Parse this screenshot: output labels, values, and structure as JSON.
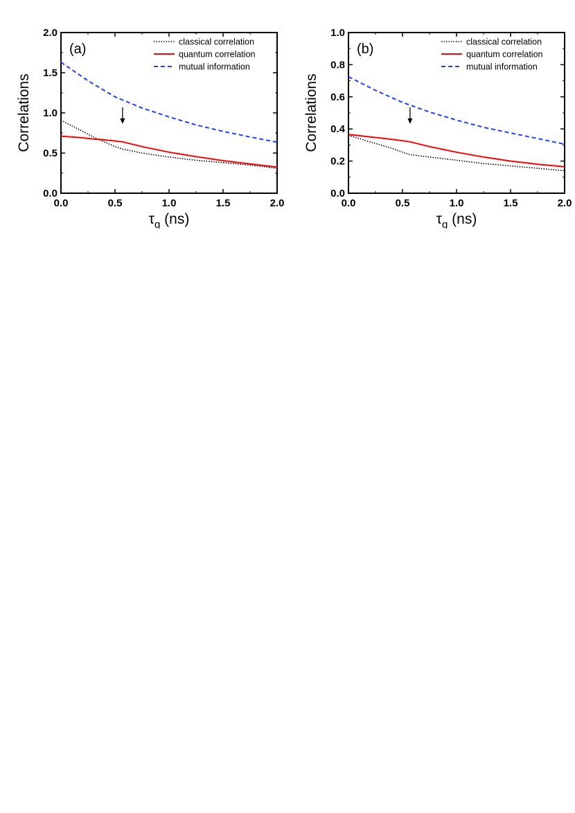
{
  "chart_data": [
    {
      "type": "line",
      "panel_label": "(a)",
      "xlabel_symbol": "τ",
      "xlabel_subscript": "g",
      "xlabel_unit": "(ns)",
      "ylabel": "Correlations",
      "xlim": [
        0,
        2
      ],
      "ylim": [
        0,
        2
      ],
      "xticks": [
        "0.0",
        "0.5",
        "1.0",
        "1.5",
        "2.0"
      ],
      "yticks": [
        "0.0",
        "0.5",
        "1.0",
        "1.5",
        "2.0"
      ],
      "legend_position": "top-right",
      "grid": false,
      "arrow_annotation_x": 0.57,
      "series": [
        {
          "name": "classical correlation",
          "color": "#000000",
          "style": "dotted",
          "x": [
            0,
            0.1,
            0.2,
            0.3,
            0.4,
            0.5,
            0.57,
            0.75,
            1.0,
            1.25,
            1.5,
            1.75,
            2.0
          ],
          "y": [
            0.91,
            0.84,
            0.77,
            0.7,
            0.64,
            0.58,
            0.55,
            0.5,
            0.45,
            0.41,
            0.38,
            0.35,
            0.31
          ]
        },
        {
          "name": "quantum correlation",
          "color": "#ff0000",
          "style": "solid",
          "x": [
            0,
            0.1,
            0.2,
            0.3,
            0.4,
            0.5,
            0.57,
            0.75,
            1.0,
            1.25,
            1.5,
            1.75,
            2.0
          ],
          "y": [
            0.71,
            0.7,
            0.69,
            0.675,
            0.665,
            0.65,
            0.64,
            0.58,
            0.51,
            0.455,
            0.405,
            0.365,
            0.325
          ]
        },
        {
          "name": "mutual information",
          "color": "#1f3fff",
          "style": "dashed",
          "x": [
            0,
            0.25,
            0.5,
            0.75,
            1.0,
            1.25,
            1.5,
            1.75,
            2.0
          ],
          "y": [
            1.63,
            1.4,
            1.2,
            1.06,
            0.95,
            0.85,
            0.77,
            0.7,
            0.635
          ]
        }
      ]
    },
    {
      "type": "line",
      "panel_label": "(b)",
      "xlabel_symbol": "τ",
      "xlabel_subscript": "g",
      "xlabel_unit": "(ns)",
      "ylabel": "Correlations",
      "xlim": [
        0,
        2
      ],
      "ylim": [
        0,
        1
      ],
      "xticks": [
        "0.0",
        "0.5",
        "1.0",
        "1.5",
        "2.0"
      ],
      "yticks": [
        "0.0",
        "0.2",
        "0.4",
        "0.6",
        "0.8",
        "1.0"
      ],
      "legend_position": "top-right",
      "grid": false,
      "arrow_annotation_x": 0.57,
      "series": [
        {
          "name": "classical correlation",
          "color": "#000000",
          "style": "dotted",
          "x": [
            0,
            0.1,
            0.2,
            0.3,
            0.4,
            0.5,
            0.57,
            0.75,
            1.0,
            1.25,
            1.5,
            1.75,
            2.0
          ],
          "y": [
            0.36,
            0.34,
            0.32,
            0.3,
            0.28,
            0.255,
            0.24,
            0.225,
            0.205,
            0.185,
            0.17,
            0.155,
            0.14
          ]
        },
        {
          "name": "quantum correlation",
          "color": "#ff0000",
          "style": "solid",
          "x": [
            0,
            0.1,
            0.2,
            0.3,
            0.4,
            0.5,
            0.57,
            0.75,
            1.0,
            1.25,
            1.5,
            1.75,
            2.0
          ],
          "y": [
            0.365,
            0.358,
            0.35,
            0.343,
            0.335,
            0.327,
            0.32,
            0.29,
            0.255,
            0.225,
            0.2,
            0.18,
            0.165
          ]
        },
        {
          "name": "mutual information",
          "color": "#1f3fff",
          "style": "dashed",
          "x": [
            0,
            0.25,
            0.5,
            0.75,
            1.0,
            1.25,
            1.5,
            1.75,
            2.0
          ],
          "y": [
            0.725,
            0.64,
            0.565,
            0.505,
            0.455,
            0.41,
            0.375,
            0.34,
            0.305
          ]
        }
      ]
    }
  ]
}
